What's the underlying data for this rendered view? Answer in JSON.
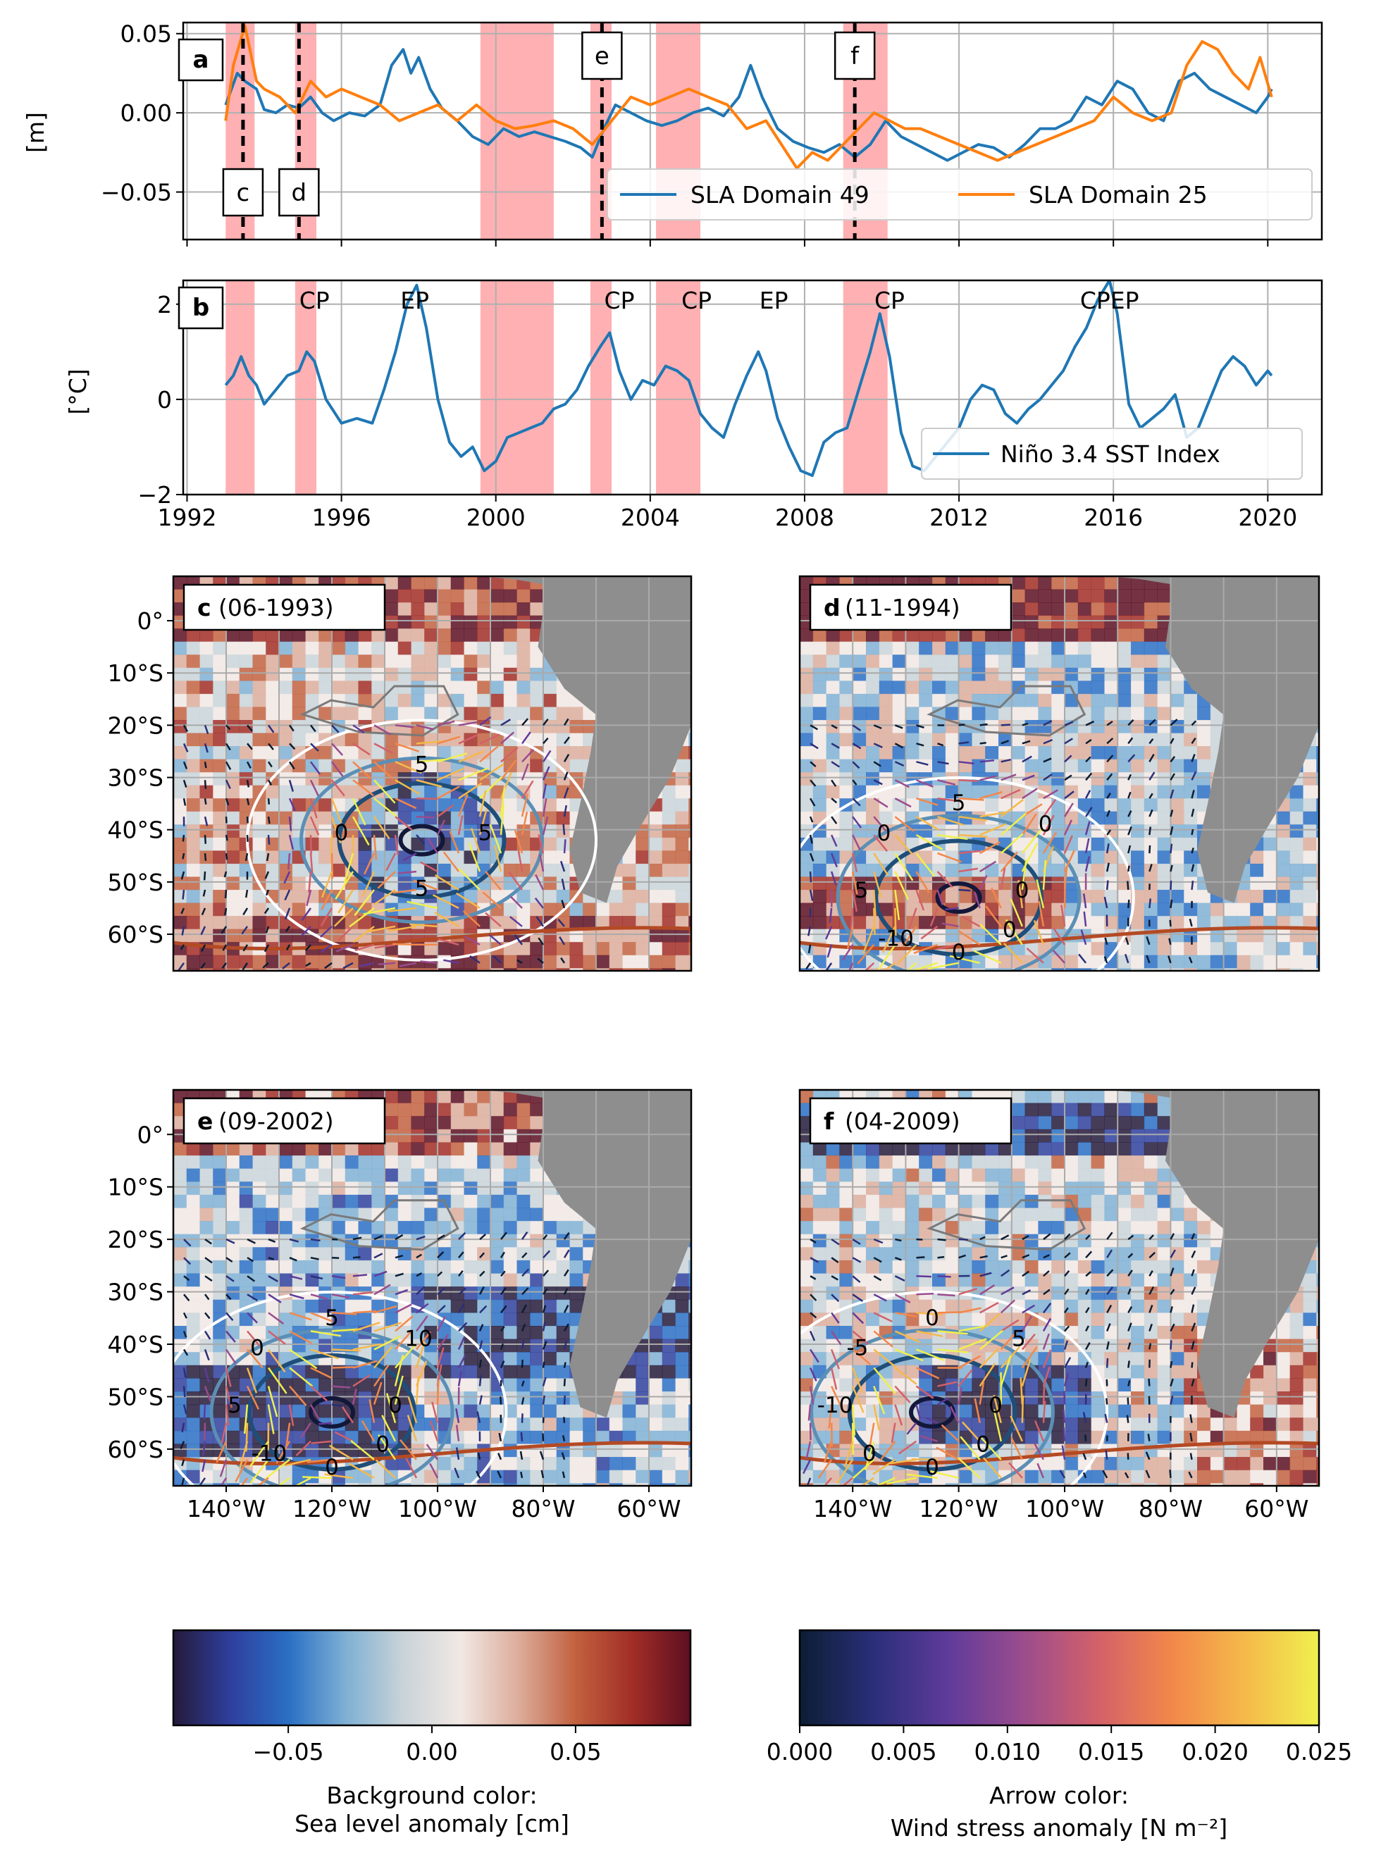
{
  "chart_data": [
    {
      "id": "a",
      "type": "line",
      "panel_label": "a",
      "ylabel": "[m]",
      "ylim": [
        -0.08,
        0.057
      ],
      "xlim": [
        1991.9,
        2021.4
      ],
      "yticks": [
        0.05,
        0.0,
        -0.05
      ],
      "ytick_labels": [
        "0.05",
        "0.00",
        "−0.05"
      ],
      "xticks": [
        1992,
        1996,
        2000,
        2004,
        2008,
        2012,
        2016,
        2020
      ],
      "grid": true,
      "legend_position": "lower-right",
      "shaded_periods": [
        [
          1993.0,
          1993.75
        ],
        [
          1994.8,
          1995.35
        ],
        [
          1999.6,
          2001.5
        ],
        [
          2002.45,
          2003.0
        ],
        [
          2004.15,
          2005.3
        ],
        [
          2009.0,
          2010.15
        ]
      ],
      "event_markers": [
        {
          "label": "c",
          "x": 1993.45,
          "box": "lower"
        },
        {
          "label": "d",
          "x": 1994.9,
          "box": "lower"
        },
        {
          "label": "e",
          "x": 2002.75,
          "box": "upper"
        },
        {
          "label": "f",
          "x": 2009.3,
          "box": "upper"
        }
      ],
      "series": [
        {
          "name": "SLA Domain 49",
          "color": "#1f77b4",
          "x": [
            1993.0,
            1993.3,
            1993.5,
            1993.8,
            1994.0,
            1994.3,
            1994.6,
            1994.9,
            1995.2,
            1995.5,
            1995.8,
            1996.2,
            1996.6,
            1997.0,
            1997.3,
            1997.6,
            1997.8,
            1998.0,
            1998.3,
            1998.6,
            1999.0,
            1999.4,
            1999.8,
            2000.2,
            2000.6,
            2001.0,
            2001.4,
            2001.8,
            2002.2,
            2002.5,
            2002.8,
            2003.1,
            2003.5,
            2003.9,
            2004.3,
            2004.7,
            2005.1,
            2005.5,
            2005.9,
            2006.3,
            2006.6,
            2006.9,
            2007.3,
            2007.7,
            2008.1,
            2008.5,
            2008.9,
            2009.3,
            2009.7,
            2010.1,
            2010.5,
            2010.9,
            2011.3,
            2011.7,
            2012.1,
            2012.5,
            2012.9,
            2013.3,
            2013.7,
            2014.1,
            2014.5,
            2014.9,
            2015.3,
            2015.7,
            2016.1,
            2016.5,
            2016.9,
            2017.3,
            2017.7,
            2018.1,
            2018.5,
            2018.9,
            2019.3,
            2019.7,
            2020.0,
            2020.1
          ],
          "y": [
            0.005,
            0.025,
            0.02,
            0.015,
            0.002,
            0.0,
            0.005,
            0.003,
            0.01,
            0.0,
            -0.005,
            0.0,
            -0.002,
            0.005,
            0.03,
            0.04,
            0.025,
            0.035,
            0.015,
            0.003,
            -0.005,
            -0.015,
            -0.02,
            -0.01,
            -0.015,
            -0.012,
            -0.015,
            -0.018,
            -0.022,
            -0.028,
            -0.01,
            0.005,
            0.0,
            -0.005,
            -0.008,
            -0.005,
            0.0,
            0.003,
            -0.002,
            0.01,
            0.03,
            0.01,
            -0.01,
            -0.018,
            -0.022,
            -0.025,
            -0.02,
            -0.028,
            -0.02,
            -0.005,
            -0.015,
            -0.02,
            -0.025,
            -0.03,
            -0.025,
            -0.02,
            -0.022,
            -0.028,
            -0.02,
            -0.01,
            -0.01,
            -0.005,
            0.01,
            0.005,
            0.02,
            0.015,
            0.0,
            -0.005,
            0.02,
            0.025,
            0.015,
            0.01,
            0.005,
            0.0,
            0.01,
            0.015
          ]
        },
        {
          "name": "SLA Domain 25",
          "color": "#ff7f0e",
          "x": [
            1993.0,
            1993.2,
            1993.5,
            1993.8,
            1994.0,
            1994.4,
            1994.8,
            1995.2,
            1995.6,
            1996.0,
            1996.5,
            1997.0,
            1997.5,
            1998.0,
            1998.5,
            1999.0,
            1999.5,
            2000.0,
            2000.5,
            2001.0,
            2001.5,
            2002.0,
            2002.5,
            2003.0,
            2003.5,
            2004.0,
            2004.5,
            2005.0,
            2005.5,
            2006.0,
            2006.5,
            2007.0,
            2007.4,
            2007.8,
            2008.2,
            2008.6,
            2009.0,
            2009.4,
            2009.8,
            2010.2,
            2010.6,
            2011.0,
            2011.5,
            2012.0,
            2012.5,
            2013.0,
            2013.5,
            2014.0,
            2014.5,
            2015.0,
            2015.5,
            2016.0,
            2016.5,
            2017.0,
            2017.5,
            2017.9,
            2018.3,
            2018.7,
            2019.1,
            2019.5,
            2019.8,
            2020.1
          ],
          "y": [
            -0.005,
            0.03,
            0.055,
            0.02,
            0.015,
            0.01,
            0.0,
            0.02,
            0.01,
            0.015,
            0.01,
            0.005,
            -0.005,
            0.0,
            0.005,
            -0.005,
            0.005,
            -0.005,
            -0.01,
            -0.008,
            -0.005,
            -0.01,
            -0.02,
            -0.005,
            0.01,
            0.005,
            0.01,
            0.015,
            0.01,
            0.005,
            -0.01,
            -0.005,
            -0.02,
            -0.035,
            -0.025,
            -0.03,
            -0.02,
            -0.01,
            0.0,
            -0.005,
            -0.01,
            -0.01,
            -0.015,
            -0.02,
            -0.025,
            -0.03,
            -0.025,
            -0.02,
            -0.015,
            -0.01,
            -0.005,
            0.01,
            0.0,
            -0.005,
            0.0,
            0.03,
            0.045,
            0.04,
            0.025,
            0.015,
            0.035,
            0.01
          ]
        }
      ]
    },
    {
      "id": "b",
      "type": "line",
      "panel_label": "b",
      "ylabel": "[°C]",
      "ylim": [
        -2,
        2.5
      ],
      "xlim": [
        1991.9,
        2021.4
      ],
      "yticks": [
        2,
        0,
        -2
      ],
      "ytick_labels": [
        "2",
        "0",
        "−2"
      ],
      "xticks": [
        1992,
        1996,
        2000,
        2004,
        2008,
        2012,
        2016,
        2020
      ],
      "xtick_labels": [
        "1992",
        "1996",
        "2000",
        "2004",
        "2008",
        "2012",
        "2016",
        "2020"
      ],
      "grid": true,
      "legend_position": "lower-right",
      "shaded_periods": [
        [
          1993.0,
          1993.75
        ],
        [
          1994.8,
          1995.35
        ],
        [
          1999.6,
          2001.5
        ],
        [
          2002.45,
          2003.0
        ],
        [
          2004.15,
          2005.3
        ],
        [
          2009.0,
          2010.15
        ]
      ],
      "event_type_labels": [
        {
          "text": "CP",
          "x": 1995.3
        },
        {
          "text": "EP",
          "x": 1997.9
        },
        {
          "text": "CP",
          "x": 2003.2
        },
        {
          "text": "CP",
          "x": 2005.2
        },
        {
          "text": "EP",
          "x": 2007.2
        },
        {
          "text": "CP",
          "x": 2010.2
        },
        {
          "text": "CPEP",
          "x": 2015.9
        }
      ],
      "series": [
        {
          "name": "Niño 3.4 SST Index",
          "color": "#1f77b4",
          "x": [
            1993.0,
            1993.2,
            1993.4,
            1993.6,
            1993.8,
            1994.0,
            1994.3,
            1994.6,
            1994.9,
            1995.1,
            1995.3,
            1995.6,
            1996.0,
            1996.4,
            1996.8,
            1997.1,
            1997.4,
            1997.7,
            1997.95,
            1998.2,
            1998.5,
            1998.8,
            1999.1,
            1999.4,
            1999.7,
            2000.0,
            2000.3,
            2000.6,
            2000.9,
            2001.2,
            2001.5,
            2001.8,
            2002.1,
            2002.4,
            2002.7,
            2002.95,
            2003.2,
            2003.5,
            2003.8,
            2004.1,
            2004.4,
            2004.7,
            2005.0,
            2005.3,
            2005.6,
            2005.9,
            2006.2,
            2006.5,
            2006.8,
            2007.0,
            2007.3,
            2007.6,
            2007.9,
            2008.2,
            2008.5,
            2008.8,
            2009.1,
            2009.4,
            2009.7,
            2009.95,
            2010.2,
            2010.5,
            2010.8,
            2011.1,
            2011.4,
            2011.7,
            2012.0,
            2012.3,
            2012.6,
            2012.9,
            2013.2,
            2013.5,
            2013.8,
            2014.1,
            2014.4,
            2014.7,
            2015.0,
            2015.3,
            2015.6,
            2015.9,
            2016.1,
            2016.4,
            2016.7,
            2017.0,
            2017.3,
            2017.6,
            2017.9,
            2018.2,
            2018.5,
            2018.8,
            2019.1,
            2019.4,
            2019.7,
            2020.0,
            2020.1
          ],
          "y": [
            0.3,
            0.5,
            0.9,
            0.5,
            0.3,
            -0.1,
            0.2,
            0.5,
            0.6,
            1.0,
            0.8,
            0.0,
            -0.5,
            -0.4,
            -0.5,
            0.2,
            1.0,
            2.0,
            2.4,
            1.5,
            0.0,
            -0.9,
            -1.2,
            -1.0,
            -1.5,
            -1.3,
            -0.8,
            -0.7,
            -0.6,
            -0.5,
            -0.2,
            -0.1,
            0.2,
            0.7,
            1.1,
            1.4,
            0.6,
            0.0,
            0.4,
            0.3,
            0.7,
            0.6,
            0.4,
            -0.3,
            -0.6,
            -0.8,
            -0.1,
            0.5,
            1.0,
            0.6,
            -0.4,
            -1.0,
            -1.5,
            -1.6,
            -0.9,
            -0.7,
            -0.6,
            0.2,
            1.0,
            1.8,
            0.9,
            -0.7,
            -1.4,
            -1.5,
            -1.2,
            -0.9,
            -0.6,
            0.0,
            0.3,
            0.2,
            -0.3,
            -0.5,
            -0.2,
            0.0,
            0.3,
            0.6,
            1.1,
            1.5,
            2.1,
            2.5,
            1.8,
            -0.1,
            -0.6,
            -0.4,
            -0.2,
            0.1,
            -0.8,
            -0.6,
            0.0,
            0.6,
            0.9,
            0.7,
            0.3,
            0.6,
            0.5
          ]
        }
      ]
    },
    {
      "id": "c",
      "type": "heatmap",
      "panel_label": "c",
      "title": "(06-1993)",
      "contour_labels": [
        "5",
        "5",
        "0",
        "5"
      ],
      "tick_labels_y": [
        "0°",
        "10°S",
        "20°S",
        "30°S",
        "40°S",
        "50°S",
        "60°S"
      ],
      "tick_labels_x": []
    },
    {
      "id": "d",
      "type": "heatmap",
      "panel_label": "d",
      "title": "(11-1994)",
      "contour_labels": [
        "0",
        "0",
        "0",
        "-10",
        "5",
        "0",
        "5",
        "0"
      ],
      "tick_labels_y": [],
      "tick_labels_x": []
    },
    {
      "id": "e",
      "type": "heatmap",
      "panel_label": "e",
      "title": "(09-2002)",
      "contour_labels": [
        "0",
        "0",
        "0",
        "-10",
        "5",
        "0",
        "5",
        "10"
      ],
      "tick_labels_y": [
        "0°",
        "10°S",
        "20°S",
        "30°S",
        "40°S",
        "50°S",
        "60°S"
      ],
      "tick_labels_x": [
        "140°W",
        "120°W",
        "100°W",
        "80°W",
        "60°W"
      ]
    },
    {
      "id": "f",
      "type": "heatmap",
      "panel_label": "f",
      "title": "(04-2009)",
      "contour_labels": [
        "0",
        "0",
        "0",
        "0",
        "-10",
        "-5",
        "0",
        "5"
      ],
      "tick_labels_y": [],
      "tick_labels_x": [
        "140°W",
        "120°W",
        "100°W",
        "80°W",
        "60°W"
      ]
    }
  ],
  "colorbars": [
    {
      "id": "sla",
      "ticks": [
        "−0.05",
        "0.00",
        "0.05"
      ],
      "range": [
        -0.09,
        0.09
      ],
      "tick_values": [
        -0.05,
        0.0,
        0.05
      ],
      "label_line1": "Background color:",
      "label_line2": "Sea level anomaly [cm]",
      "colors": [
        "#241a3a",
        "#2f3f9e",
        "#2a6fc4",
        "#7fb0d4",
        "#c9d3d8",
        "#f1e8e4",
        "#dcad9c",
        "#c2613f",
        "#a12d26",
        "#5c0f22"
      ]
    },
    {
      "id": "wind",
      "ticks": [
        "0.000",
        "0.005",
        "0.010",
        "0.015",
        "0.020",
        "0.025"
      ],
      "range": [
        0,
        0.025
      ],
      "tick_values": [
        0,
        0.005,
        0.01,
        0.015,
        0.02,
        0.025
      ],
      "label_line1": "Arrow color:",
      "label_line2": "Wind stress anomaly [N m⁻²]",
      "colors": [
        "#0c1d33",
        "#2a2f7a",
        "#5f3b9a",
        "#9a4c8e",
        "#d2606a",
        "#f2874a",
        "#f5b94a",
        "#f0f04e"
      ]
    }
  ]
}
